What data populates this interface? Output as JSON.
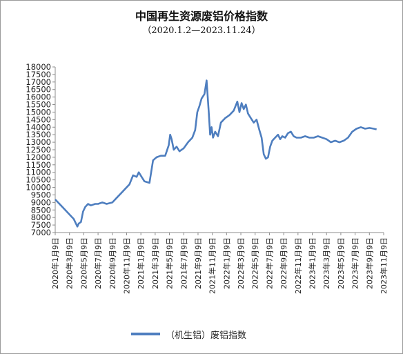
{
  "chart_data": {
    "type": "line",
    "title": "中国再生资源废铝价格指数",
    "subtitle": "（2020.1.2—2023.11.24）",
    "xlabel": "",
    "ylabel": "",
    "ylim": [
      7000,
      18000
    ],
    "y_ticks": [
      "7000",
      "7500",
      "8000",
      "8500",
      "9000",
      "9500",
      "10000",
      "10500",
      "11000",
      "11500",
      "12000",
      "12500",
      "13000",
      "13500",
      "14000",
      "14500",
      "15000",
      "15500",
      "16000",
      "16500",
      "17000",
      "17500",
      "18000"
    ],
    "x_ticks": [
      "2020年1月9日",
      "2020年3月9日",
      "2020年5月9日",
      "2020年7月9日",
      "2020年9月9日",
      "2020年11月9日",
      "2021年1月9日",
      "2021年3月9日",
      "2021年5月9日",
      "2021年7月9日",
      "2021年9月9日",
      "2021年11月9日",
      "2022年1月9日",
      "2022年3月9日",
      "2022年5月9日",
      "2022年7月9日",
      "2022年9月9日",
      "2022年11月9日",
      "2023年1月9日",
      "2023年3月9日",
      "2023年5月9日",
      "2023年7月9日",
      "2023年9月9日",
      "2023年11月9日"
    ],
    "grid": false,
    "legend_position": "bottom",
    "series": [
      {
        "name": "（机生铝）废铝指数",
        "color": "#4e7ebf",
        "points": [
          [
            0,
            9200
          ],
          [
            0.4,
            8800
          ],
          [
            0.9,
            8300
          ],
          [
            1.3,
            7900
          ],
          [
            1.55,
            7400
          ],
          [
            1.65,
            7600
          ],
          [
            1.8,
            7700
          ],
          [
            1.95,
            8400
          ],
          [
            2.1,
            8700
          ],
          [
            2.3,
            8900
          ],
          [
            2.5,
            8800
          ],
          [
            2.8,
            8900
          ],
          [
            3.0,
            8900
          ],
          [
            3.3,
            9000
          ],
          [
            3.6,
            8900
          ],
          [
            4.0,
            9000
          ],
          [
            4.3,
            9300
          ],
          [
            4.6,
            9600
          ],
          [
            4.9,
            9900
          ],
          [
            5.2,
            10200
          ],
          [
            5.45,
            10800
          ],
          [
            5.7,
            10700
          ],
          [
            5.85,
            11000
          ],
          [
            6.05,
            10700
          ],
          [
            6.25,
            10400
          ],
          [
            6.6,
            10300
          ],
          [
            6.85,
            11800
          ],
          [
            7.1,
            12000
          ],
          [
            7.4,
            12100
          ],
          [
            7.7,
            12100
          ],
          [
            7.95,
            12800
          ],
          [
            8.05,
            13500
          ],
          [
            8.15,
            13200
          ],
          [
            8.3,
            12500
          ],
          [
            8.5,
            12700
          ],
          [
            8.7,
            12400
          ],
          [
            9.0,
            12600
          ],
          [
            9.3,
            13000
          ],
          [
            9.6,
            13300
          ],
          [
            9.8,
            13800
          ],
          [
            9.95,
            15000
          ],
          [
            10.1,
            15400
          ],
          [
            10.25,
            15900
          ],
          [
            10.45,
            16200
          ],
          [
            10.6,
            17100
          ],
          [
            10.75,
            15000
          ],
          [
            10.85,
            13500
          ],
          [
            10.95,
            14000
          ],
          [
            11.05,
            13300
          ],
          [
            11.2,
            13700
          ],
          [
            11.4,
            13400
          ],
          [
            11.6,
            14300
          ],
          [
            11.9,
            14600
          ],
          [
            12.2,
            14800
          ],
          [
            12.5,
            15100
          ],
          [
            12.75,
            15700
          ],
          [
            12.9,
            15000
          ],
          [
            13.05,
            15600
          ],
          [
            13.2,
            15200
          ],
          [
            13.35,
            15500
          ],
          [
            13.5,
            14900
          ],
          [
            13.7,
            14600
          ],
          [
            13.9,
            14300
          ],
          [
            14.1,
            14500
          ],
          [
            14.3,
            13800
          ],
          [
            14.45,
            13300
          ],
          [
            14.6,
            12200
          ],
          [
            14.75,
            11900
          ],
          [
            14.9,
            12000
          ],
          [
            15.05,
            12700
          ],
          [
            15.2,
            13100
          ],
          [
            15.4,
            13300
          ],
          [
            15.6,
            13500
          ],
          [
            15.75,
            13200
          ],
          [
            15.9,
            13400
          ],
          [
            16.1,
            13300
          ],
          [
            16.3,
            13600
          ],
          [
            16.5,
            13700
          ],
          [
            16.7,
            13400
          ],
          [
            16.9,
            13300
          ],
          [
            17.2,
            13300
          ],
          [
            17.5,
            13400
          ],
          [
            17.8,
            13300
          ],
          [
            18.1,
            13300
          ],
          [
            18.4,
            13400
          ],
          [
            18.7,
            13300
          ],
          [
            19.0,
            13200
          ],
          [
            19.3,
            13000
          ],
          [
            19.6,
            13100
          ],
          [
            19.9,
            13000
          ],
          [
            20.2,
            13100
          ],
          [
            20.5,
            13300
          ],
          [
            20.8,
            13700
          ],
          [
            21.1,
            13900
          ],
          [
            21.4,
            14000
          ],
          [
            21.7,
            13900
          ],
          [
            22.0,
            13950
          ],
          [
            22.3,
            13900
          ],
          [
            22.5,
            13850
          ]
        ]
      }
    ]
  }
}
